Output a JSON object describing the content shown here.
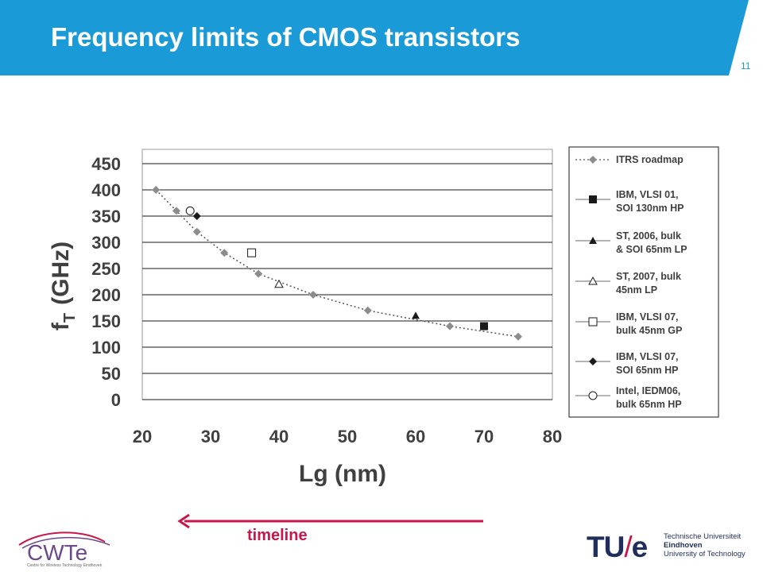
{
  "slide": {
    "title": "Frequency limits of CMOS transistors",
    "page_number": "11",
    "header_color": "#1a9ad6",
    "timeline_label": "timeline",
    "timeline_color": "#c8174b"
  },
  "logos": {
    "cwte": {
      "name": "CWTe",
      "subtitle": "Centre for Wireless Technology Eindhoven"
    },
    "tue": {
      "mark_left": "TU",
      "mark_slash": "/",
      "mark_right": "e",
      "line1": "Technische Universiteit",
      "line2": "Eindhoven",
      "line3": "University of Technology"
    }
  },
  "chart_data": {
    "type": "scatter",
    "title": "",
    "xlabel": "Lg (nm)",
    "ylabel_main": "f",
    "ylabel_sub": "T",
    "ylabel_unit": "(GHz)",
    "xlim": [
      20,
      80
    ],
    "ylim": [
      0,
      450
    ],
    "xticks": [
      "20",
      "30",
      "40",
      "50",
      "60",
      "70",
      "80"
    ],
    "yticks": [
      "0",
      "50",
      "100",
      "150",
      "200",
      "250",
      "300",
      "350",
      "400",
      "450"
    ],
    "grid": "horizontal",
    "legend_position": "right",
    "series": [
      {
        "name": "ITRS roadmap",
        "marker": "diamond",
        "color": "#8c8c8c",
        "line": "dotted",
        "points": [
          [
            22,
            400
          ],
          [
            25,
            360
          ],
          [
            28,
            320
          ],
          [
            32,
            280
          ],
          [
            37,
            240
          ],
          [
            45,
            200
          ],
          [
            53,
            170
          ],
          [
            65,
            140
          ],
          [
            75,
            120
          ]
        ]
      },
      {
        "name": "IBM, VLSI 01, SOI 130nm HP",
        "marker": "square-filled",
        "color": "#1a1a1a",
        "points": [
          [
            70,
            140
          ]
        ]
      },
      {
        "name": "ST, 2006, bulk & SOI 65nm LP",
        "marker": "triangle-filled",
        "color": "#1a1a1a",
        "points": [
          [
            60,
            160
          ]
        ]
      },
      {
        "name": "ST, 2007, bulk 45nm LP",
        "marker": "triangle-open",
        "color": "#1a1a1a",
        "points": [
          [
            40,
            220
          ]
        ]
      },
      {
        "name": "IBM, VLSI 07, bulk 45nm GP",
        "marker": "square-open",
        "color": "#1a1a1a",
        "points": [
          [
            36,
            280
          ]
        ]
      },
      {
        "name": "IBM, VLSI 07, SOI 65nm HP",
        "marker": "diamond-filled",
        "color": "#1a1a1a",
        "points": [
          [
            28,
            350
          ]
        ]
      },
      {
        "name": "Intel, IEDM06, bulk 65nm HP",
        "marker": "circle-open",
        "color": "#1a1a1a",
        "points": [
          [
            27,
            360
          ]
        ]
      }
    ],
    "legend": [
      {
        "line1": "ITRS roadmap",
        "line2": ""
      },
      {
        "line1": "IBM, VLSI 01,",
        "line2": "SOI 130nm HP"
      },
      {
        "line1": "ST, 2006, bulk",
        "line2": "& SOI 65nm LP"
      },
      {
        "line1": "ST, 2007, bulk",
        "line2": "45nm LP"
      },
      {
        "line1": "IBM, VLSI 07,",
        "line2": "bulk  45nm GP"
      },
      {
        "line1": "IBM, VLSI 07,",
        "line2": "SOI 65nm HP"
      },
      {
        "line1": "Intel, IEDM06,",
        "line2": "bulk 65nm HP"
      }
    ]
  }
}
